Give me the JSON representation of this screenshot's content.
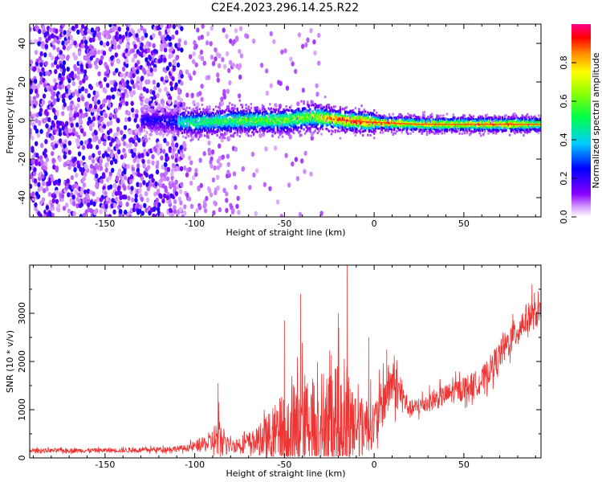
{
  "title": "C2E4.2023.296.14.25.R22",
  "chart_data": [
    {
      "type": "heatmap",
      "xlabel": "Height of straight line (km)",
      "ylabel": "Frequency (Hz)",
      "xlim": [
        -192,
        93
      ],
      "ylim": [
        -50,
        50
      ],
      "xticks": [
        -150,
        -100,
        -50,
        0,
        50
      ],
      "yticks": [
        -40,
        -20,
        0,
        20,
        40
      ],
      "xtick_labels": [
        "-150",
        "-100",
        "-50",
        "0",
        "50"
      ],
      "ytick_labels": [
        "-40",
        "-20",
        "0",
        "20",
        "40"
      ],
      "colorbar": {
        "label": "Normalized spectral amplitude",
        "range": [
          0,
          1
        ],
        "ticks": [
          0.0,
          0.2,
          0.4,
          0.6,
          0.8
        ],
        "tick_labels": [
          "0.0",
          "0.2",
          "0.4",
          "0.6",
          "0.8"
        ],
        "colormap": "rainbow (white-violet-blue-cyan-green-yellow-orange-red-magenta)"
      },
      "ridge": [
        {
          "x": -125,
          "y": 0,
          "amp": 0.3
        },
        {
          "x": -100,
          "y": -1,
          "amp": 0.45
        },
        {
          "x": -75,
          "y": 0,
          "amp": 0.5
        },
        {
          "x": -50,
          "y": 0,
          "amp": 0.55
        },
        {
          "x": -35,
          "y": 2,
          "amp": 0.6
        },
        {
          "x": -17,
          "y": 0,
          "amp": 0.9
        },
        {
          "x": 0,
          "y": -1,
          "amp": 0.85
        },
        {
          "x": 25,
          "y": -2,
          "amp": 0.7
        },
        {
          "x": 50,
          "y": -2,
          "amp": 0.75
        },
        {
          "x": 75,
          "y": -2,
          "amp": 0.8
        },
        {
          "x": 93,
          "y": -2,
          "amp": 0.6
        }
      ],
      "grid": false
    },
    {
      "type": "line",
      "xlabel": "Height of straight line (km)",
      "ylabel": "SNR (10 * v/v)",
      "xlim": [
        -192,
        93
      ],
      "ylim": [
        0,
        4000
      ],
      "xticks": [
        -150,
        -100,
        -50,
        0,
        50
      ],
      "yticks": [
        0,
        1000,
        2000,
        3000
      ],
      "xtick_labels": [
        "-150",
        "-100",
        "-50",
        "0",
        "50"
      ],
      "ytick_labels": [
        "0",
        "1000",
        "2000",
        "3000"
      ],
      "series": [
        {
          "color": "#ee3333",
          "envelope": [
            {
              "x": -192,
              "base": 150,
              "amp": 100
            },
            {
              "x": -130,
              "base": 160,
              "amp": 110
            },
            {
              "x": -105,
              "base": 200,
              "amp": 150
            },
            {
              "x": -92,
              "base": 300,
              "amp": 400
            },
            {
              "x": -87,
              "base": 400,
              "amp": 1100
            },
            {
              "x": -80,
              "base": 250,
              "amp": 300
            },
            {
              "x": -65,
              "base": 350,
              "amp": 600
            },
            {
              "x": -50,
              "base": 500,
              "amp": 2000
            },
            {
              "x": -40,
              "base": 700,
              "amp": 2400
            },
            {
              "x": -30,
              "base": 800,
              "amp": 2200
            },
            {
              "x": -18,
              "base": 900,
              "amp": 3200
            },
            {
              "x": -10,
              "base": 700,
              "amp": 1600
            },
            {
              "x": 0,
              "base": 700,
              "amp": 1100
            },
            {
              "x": 10,
              "base": 1600,
              "amp": 1200
            },
            {
              "x": 20,
              "base": 1000,
              "amp": 400
            },
            {
              "x": 40,
              "base": 1300,
              "amp": 500
            },
            {
              "x": 60,
              "base": 1600,
              "amp": 600
            },
            {
              "x": 75,
              "base": 2400,
              "amp": 700
            },
            {
              "x": 85,
              "base": 2900,
              "amp": 700
            },
            {
              "x": 93,
              "base": 3000,
              "amp": 600
            }
          ],
          "peaks": [
            {
              "x": -87,
              "y": 1550
            },
            {
              "x": -50,
              "y": 2850
            },
            {
              "x": -41,
              "y": 3400
            },
            {
              "x": -20,
              "y": 3000
            },
            {
              "x": -15,
              "y": 4000
            },
            {
              "x": -3,
              "y": 2500
            },
            {
              "x": 7,
              "y": 2250
            },
            {
              "x": 88,
              "y": 3600
            }
          ]
        }
      ],
      "grid": false
    }
  ]
}
